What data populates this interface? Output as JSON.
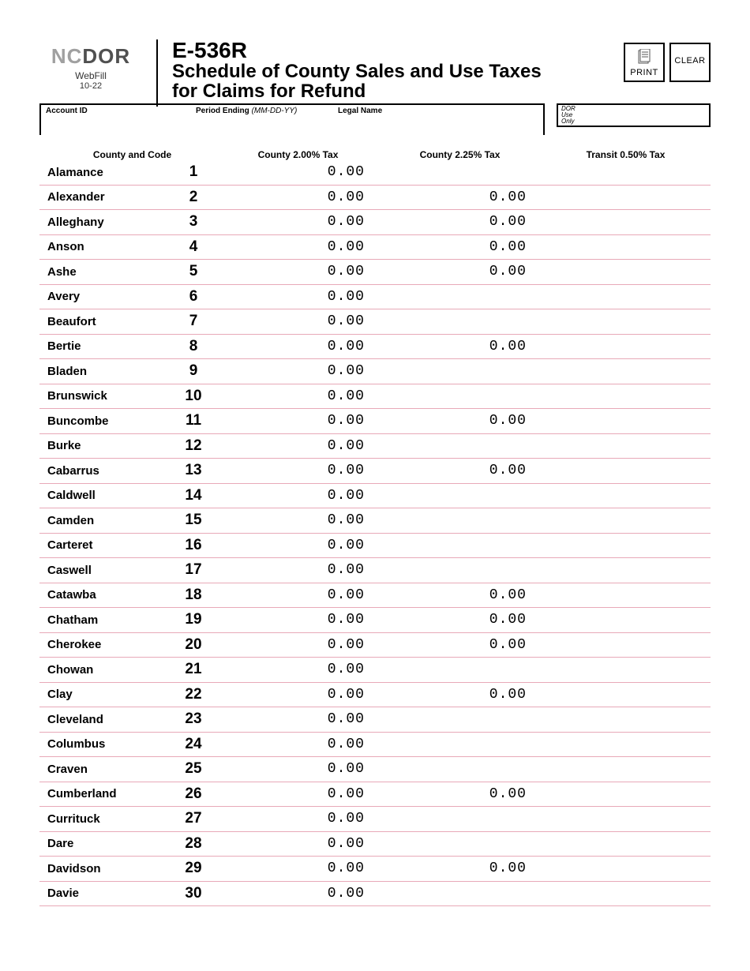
{
  "logo": {
    "nc": "NC",
    "dor": "DOR",
    "sub1": "WebFill",
    "sub2": "10-22"
  },
  "form": {
    "code": "E-536R",
    "title_l1": "Schedule of County Sales and Use Taxes",
    "title_l2": "for Claims for Refund"
  },
  "buttons": {
    "print": "PRINT",
    "clear": "CLEAR"
  },
  "info": {
    "account_label": "Account ID",
    "period_label": "Period Ending",
    "period_hint": "(MM-DD-YY)",
    "legal_label": "Legal Name",
    "dor_l1": "DOR",
    "dor_l2": "Use",
    "dor_l3": "Only"
  },
  "colheaders": {
    "county": "County and Code",
    "tax1": "County 2.00% Tax",
    "tax2": "County 2.25% Tax",
    "tax3": "Transit 0.50% Tax"
  },
  "rows": [
    {
      "name": "Alamance",
      "code": "1",
      "t1": "0.00",
      "t2": "",
      "t3": ""
    },
    {
      "name": "Alexander",
      "code": "2",
      "t1": "0.00",
      "t2": "0.00",
      "t3": ""
    },
    {
      "name": "Alleghany",
      "code": "3",
      "t1": "0.00",
      "t2": "0.00",
      "t3": ""
    },
    {
      "name": "Anson",
      "code": "4",
      "t1": "0.00",
      "t2": "0.00",
      "t3": ""
    },
    {
      "name": "Ashe",
      "code": "5",
      "t1": "0.00",
      "t2": "0.00",
      "t3": ""
    },
    {
      "name": "Avery",
      "code": "6",
      "t1": "0.00",
      "t2": "",
      "t3": ""
    },
    {
      "name": "Beaufort",
      "code": "7",
      "t1": "0.00",
      "t2": "",
      "t3": ""
    },
    {
      "name": "Bertie",
      "code": "8",
      "t1": "0.00",
      "t2": "0.00",
      "t3": ""
    },
    {
      "name": "Bladen",
      "code": "9",
      "t1": "0.00",
      "t2": "",
      "t3": ""
    },
    {
      "name": "Brunswick",
      "code": "10",
      "t1": "0.00",
      "t2": "",
      "t3": ""
    },
    {
      "name": "Buncombe",
      "code": "11",
      "t1": "0.00",
      "t2": "0.00",
      "t3": ""
    },
    {
      "name": "Burke",
      "code": "12",
      "t1": "0.00",
      "t2": "",
      "t3": ""
    },
    {
      "name": "Cabarrus",
      "code": "13",
      "t1": "0.00",
      "t2": "0.00",
      "t3": ""
    },
    {
      "name": "Caldwell",
      "code": "14",
      "t1": "0.00",
      "t2": "",
      "t3": ""
    },
    {
      "name": "Camden",
      "code": "15",
      "t1": "0.00",
      "t2": "",
      "t3": ""
    },
    {
      "name": "Carteret",
      "code": "16",
      "t1": "0.00",
      "t2": "",
      "t3": ""
    },
    {
      "name": "Caswell",
      "code": "17",
      "t1": "0.00",
      "t2": "",
      "t3": ""
    },
    {
      "name": "Catawba",
      "code": "18",
      "t1": "0.00",
      "t2": "0.00",
      "t3": ""
    },
    {
      "name": "Chatham",
      "code": "19",
      "t1": "0.00",
      "t2": "0.00",
      "t3": ""
    },
    {
      "name": "Cherokee",
      "code": "20",
      "t1": "0.00",
      "t2": "0.00",
      "t3": ""
    },
    {
      "name": "Chowan",
      "code": "21",
      "t1": "0.00",
      "t2": "",
      "t3": ""
    },
    {
      "name": "Clay",
      "code": "22",
      "t1": "0.00",
      "t2": "0.00",
      "t3": ""
    },
    {
      "name": "Cleveland",
      "code": "23",
      "t1": "0.00",
      "t2": "",
      "t3": ""
    },
    {
      "name": "Columbus",
      "code": "24",
      "t1": "0.00",
      "t2": "",
      "t3": ""
    },
    {
      "name": "Craven",
      "code": "25",
      "t1": "0.00",
      "t2": "",
      "t3": ""
    },
    {
      "name": "Cumberland",
      "code": "26",
      "t1": "0.00",
      "t2": "0.00",
      "t3": ""
    },
    {
      "name": "Currituck",
      "code": "27",
      "t1": "0.00",
      "t2": "",
      "t3": ""
    },
    {
      "name": "Dare",
      "code": "28",
      "t1": "0.00",
      "t2": "",
      "t3": ""
    },
    {
      "name": "Davidson",
      "code": "29",
      "t1": "0.00",
      "t2": "0.00",
      "t3": ""
    },
    {
      "name": "Davie",
      "code": "30",
      "t1": "0.00",
      "t2": "",
      "t3": ""
    }
  ]
}
